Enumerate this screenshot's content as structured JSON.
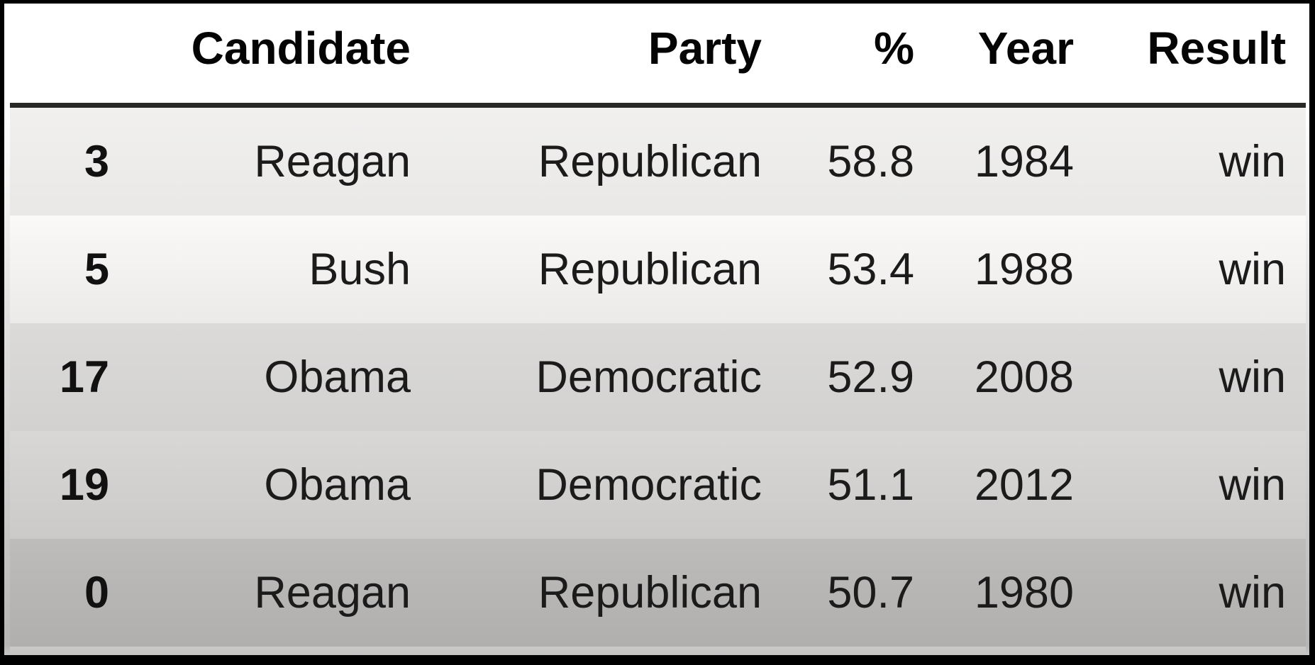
{
  "chart_data": {
    "type": "table",
    "columns": [
      "",
      "Candidate",
      "Party",
      "%",
      "Year",
      "Result"
    ],
    "rows": [
      {
        "index": "3",
        "candidate": "Reagan",
        "party": "Republican",
        "pct": "58.8",
        "year": "1984",
        "result": "win"
      },
      {
        "index": "5",
        "candidate": "Bush",
        "party": "Republican",
        "pct": "53.4",
        "year": "1988",
        "result": "win"
      },
      {
        "index": "17",
        "candidate": "Obama",
        "party": "Democratic",
        "pct": "52.9",
        "year": "2008",
        "result": "win"
      },
      {
        "index": "19",
        "candidate": "Obama",
        "party": "Democratic",
        "pct": "51.1",
        "year": "2012",
        "result": "win"
      },
      {
        "index": "0",
        "candidate": "Reagan",
        "party": "Republican",
        "pct": "50.7",
        "year": "1980",
        "result": "win"
      }
    ],
    "layout_hints": {
      "alignment": "right",
      "header_bold": true,
      "index_column_bold": true,
      "zebra_striping": true,
      "gradient_overlay": "darkens toward bottom"
    }
  },
  "colors": {
    "frame_border": "#000000",
    "header_background": "#ffffff",
    "header_rule": "#282827",
    "header_text": "#040404",
    "cell_text": "#1b1b1b",
    "stripe_even": "#f1f0ef",
    "stripe_odd": "#faf9f8",
    "bottom_row": "#b6b5b4"
  }
}
